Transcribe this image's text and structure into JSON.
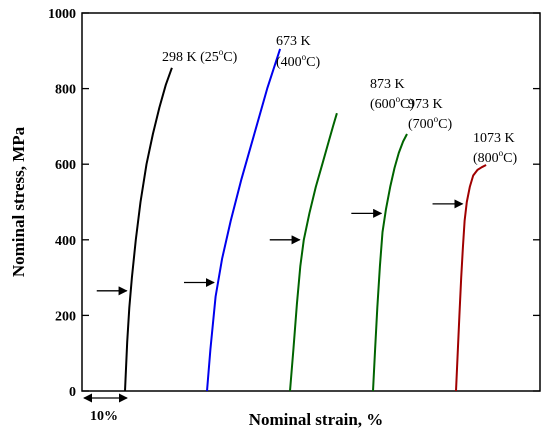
{
  "chart_data": {
    "type": "line",
    "xlabel": "Nominal strain, %",
    "ylabel": "Nominal stress, MPa",
    "ylim": [
      0,
      1000
    ],
    "yticks": [
      0,
      200,
      400,
      600,
      800,
      1000
    ],
    "grid": false,
    "legend": "none",
    "x_scale_bar": {
      "label": "10%",
      "strain_percent": 10
    },
    "series": [
      {
        "label_line1": "298 K (25",
        "label_sup": "o",
        "label_line1_end": "C)",
        "label_line2": "",
        "label_line2_end": "",
        "color": "#000000",
        "x_offset_percent": 0,
        "strain_percent": [
          0,
          0.5,
          1.0,
          1.6,
          2.5,
          3.6,
          5.0,
          6.5,
          8.0,
          9.5,
          10.9
        ],
        "stress_mpa": [
          0,
          130,
          220,
          300,
          400,
          500,
          600,
          680,
          750,
          810,
          855
        ],
        "arrow_stress": 265
      },
      {
        "label_line1": "673 K",
        "label_sup": "",
        "label_line1_end": "",
        "label_line2": "(400",
        "label_line2_end": "C)",
        "color": "#0000ee",
        "x_offset_percent": 0,
        "strain_percent": [
          0,
          0.8,
          2.0,
          3.5,
          5.5,
          8.0,
          11.0,
          14.0,
          17.0
        ],
        "stress_mpa": [
          0,
          110,
          250,
          350,
          450,
          560,
          680,
          800,
          905
        ],
        "arrow_stress": 287
      },
      {
        "label_line1": "873 K",
        "label_sup": "",
        "label_line1_end": "",
        "label_line2": "(600",
        "label_line2_end": "C)",
        "color": "#006400",
        "x_offset_percent": 0,
        "strain_percent": [
          0,
          0.8,
          1.6,
          2.4,
          3.2,
          4.5,
          6.0,
          7.5,
          9.0,
          10.0,
          10.9
        ],
        "stress_mpa": [
          0,
          110,
          230,
          330,
          400,
          470,
          540,
          600,
          660,
          700,
          735
        ],
        "arrow_stress": 400
      },
      {
        "label_line1": "973 K",
        "label_sup": "",
        "label_line1_end": "",
        "label_line2": "(700",
        "label_line2_end": "C)",
        "color": "#006400",
        "x_offset_percent": 0,
        "strain_percent": [
          0,
          0.5,
          1.0,
          1.6,
          2.2,
          3.0,
          4.0,
          5.0,
          6.0,
          7.0,
          7.9
        ],
        "stress_mpa": [
          0,
          110,
          220,
          330,
          420,
          480,
          540,
          590,
          630,
          660,
          680
        ],
        "arrow_stress": 470
      },
      {
        "label_line1": "1073 K",
        "label_sup": "",
        "label_line1_end": "",
        "label_line2": "(800",
        "label_line2_end": "C)",
        "color": "#a00000",
        "x_offset_percent": 0,
        "strain_percent": [
          0,
          0.4,
          0.8,
          1.2,
          1.6,
          2.0,
          2.5,
          3.2,
          4.0,
          5.0,
          6.0,
          7.0
        ],
        "stress_mpa": [
          0,
          100,
          200,
          300,
          380,
          450,
          500,
          540,
          570,
          585,
          592,
          598
        ],
        "arrow_stress": 495
      }
    ]
  }
}
